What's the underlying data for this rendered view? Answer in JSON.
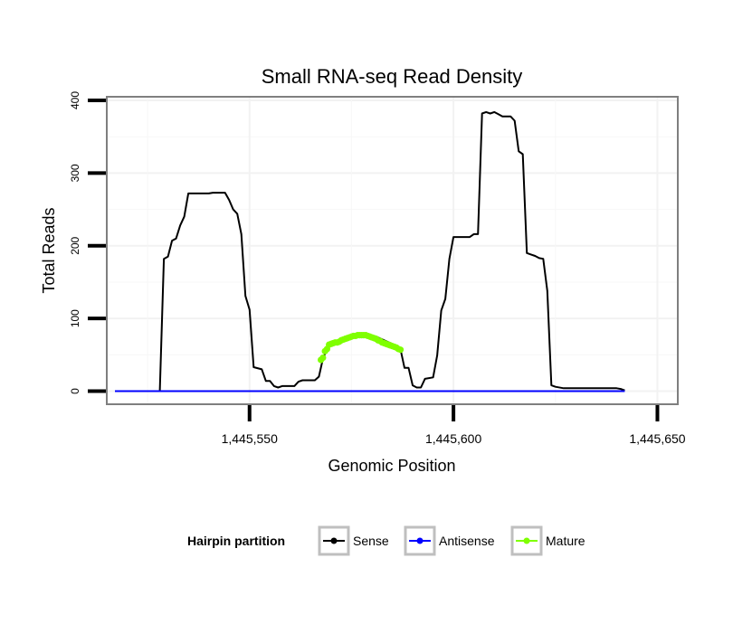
{
  "chart_data": {
    "type": "line",
    "title": "Small RNA-seq Read Density",
    "xlabel": "Genomic Position",
    "ylabel": "Total Reads",
    "xlim": [
      1445515,
      1445655
    ],
    "ylim": [
      -18,
      405
    ],
    "x_ticks": [
      1445550,
      1445600,
      1445650
    ],
    "x_tick_labels": [
      "1,445,550",
      "1,445,600",
      "1,445,650"
    ],
    "y_ticks": [
      0,
      100,
      200,
      300,
      400
    ],
    "y_tick_labels": [
      "0",
      "100",
      "200",
      "300",
      "400"
    ],
    "grid": true,
    "legend": {
      "title": "Hairpin partition",
      "placement": "bottom",
      "entries": [
        {
          "name": "Sense",
          "color": "#000000"
        },
        {
          "name": "Antisense",
          "color": "#0000ff"
        },
        {
          "name": "Mature",
          "color": "#7fff00"
        }
      ]
    },
    "series": [
      {
        "name": "Sense",
        "color": "#000000",
        "markers": false,
        "points": [
          [
            1445517,
            0
          ],
          [
            1445528,
            0
          ],
          [
            1445529,
            182
          ],
          [
            1445530,
            185
          ],
          [
            1445531,
            207
          ],
          [
            1445532,
            210
          ],
          [
            1445533,
            228
          ],
          [
            1445534,
            240
          ],
          [
            1445535,
            272
          ],
          [
            1445536,
            272
          ],
          [
            1445540,
            272
          ],
          [
            1445541,
            273
          ],
          [
            1445544,
            273
          ],
          [
            1445545,
            263
          ],
          [
            1445546,
            250
          ],
          [
            1445547,
            244
          ],
          [
            1445548,
            216
          ],
          [
            1445549,
            131
          ],
          [
            1445550,
            112
          ],
          [
            1445551,
            33
          ],
          [
            1445553,
            30
          ],
          [
            1445554,
            14
          ],
          [
            1445555,
            14
          ],
          [
            1445556,
            7
          ],
          [
            1445557,
            5
          ],
          [
            1445558,
            7
          ],
          [
            1445561,
            7
          ],
          [
            1445562,
            13
          ],
          [
            1445563,
            15
          ],
          [
            1445566,
            15
          ],
          [
            1445567,
            20
          ],
          [
            1445568,
            45
          ],
          [
            1445569,
            58
          ],
          [
            1445570,
            65
          ],
          [
            1445574,
            70
          ],
          [
            1445576,
            75
          ],
          [
            1445579,
            77
          ],
          [
            1445581,
            75
          ],
          [
            1445583,
            70
          ],
          [
            1445585,
            65
          ],
          [
            1445586,
            62
          ],
          [
            1445587,
            58
          ],
          [
            1445588,
            32
          ],
          [
            1445589,
            32
          ],
          [
            1445590,
            8
          ],
          [
            1445591,
            5
          ],
          [
            1445592,
            5
          ],
          [
            1445593,
            17
          ],
          [
            1445595,
            19
          ],
          [
            1445596,
            49
          ],
          [
            1445597,
            111
          ],
          [
            1445598,
            127
          ],
          [
            1445599,
            182
          ],
          [
            1445600,
            212
          ],
          [
            1445604,
            212
          ],
          [
            1445605,
            216
          ],
          [
            1445606,
            216
          ],
          [
            1445607,
            382
          ],
          [
            1445608,
            384
          ],
          [
            1445609,
            382
          ],
          [
            1445610,
            384
          ],
          [
            1445611,
            381
          ],
          [
            1445612,
            378
          ],
          [
            1445614,
            378
          ],
          [
            1445615,
            372
          ],
          [
            1445616,
            330
          ],
          [
            1445617,
            326
          ],
          [
            1445618,
            190
          ],
          [
            1445619,
            188
          ],
          [
            1445620,
            186
          ],
          [
            1445621,
            183
          ],
          [
            1445622,
            182
          ],
          [
            1445623,
            138
          ],
          [
            1445624,
            8
          ],
          [
            1445625,
            6
          ],
          [
            1445627,
            4
          ],
          [
            1445640,
            4
          ],
          [
            1445641,
            3
          ],
          [
            1445642,
            1
          ]
        ]
      },
      {
        "name": "Antisense",
        "color": "#0000ff",
        "markers": false,
        "points": [
          [
            1445517,
            0
          ],
          [
            1445642,
            0
          ]
        ]
      },
      {
        "name": "Mature",
        "color": "#7fff00",
        "markers": true,
        "points": [
          [
            1445567.5,
            43
          ],
          [
            1445568,
            46
          ],
          [
            1445568.5,
            55
          ],
          [
            1445569,
            58
          ],
          [
            1445569.5,
            64
          ],
          [
            1445570,
            65
          ],
          [
            1445570.5,
            66
          ],
          [
            1445571,
            67
          ],
          [
            1445571.5,
            67
          ],
          [
            1445572,
            68
          ],
          [
            1445572.5,
            70
          ],
          [
            1445573,
            71
          ],
          [
            1445573.5,
            72
          ],
          [
            1445574,
            73
          ],
          [
            1445574.5,
            74
          ],
          [
            1445575,
            75
          ],
          [
            1445575.5,
            76
          ],
          [
            1445576,
            76
          ],
          [
            1445576.5,
            77
          ],
          [
            1445577,
            77
          ],
          [
            1445577.5,
            77
          ],
          [
            1445578,
            77
          ],
          [
            1445578.5,
            77
          ],
          [
            1445579,
            76
          ],
          [
            1445579.5,
            75
          ],
          [
            1445580,
            74
          ],
          [
            1445580.5,
            73
          ],
          [
            1445581,
            72
          ],
          [
            1445581.5,
            70
          ],
          [
            1445582,
            69
          ],
          [
            1445582.5,
            67
          ],
          [
            1445583,
            66
          ],
          [
            1445583.5,
            65
          ],
          [
            1445584,
            64
          ],
          [
            1445584.5,
            63
          ],
          [
            1445585,
            62
          ],
          [
            1445585.5,
            61
          ],
          [
            1445586,
            60
          ],
          [
            1445586.5,
            58
          ],
          [
            1445587,
            57
          ]
        ]
      }
    ]
  }
}
